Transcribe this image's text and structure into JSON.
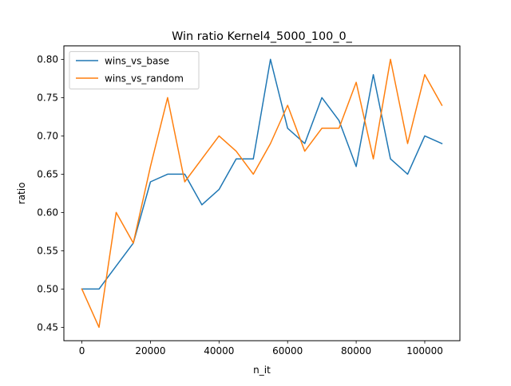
{
  "chart_data": {
    "type": "line",
    "title": "Win ratio Kernel4_5000_100_0_",
    "xlabel": "n_it",
    "ylabel": "ratio",
    "xlim": [
      -5250,
      110250
    ],
    "ylim": [
      0.4325,
      0.8175
    ],
    "xticks": [
      0,
      20000,
      40000,
      60000,
      80000,
      100000
    ],
    "xtick_labels": [
      "0",
      "20000",
      "40000",
      "60000",
      "80000",
      "100000"
    ],
    "yticks": [
      0.45,
      0.5,
      0.55,
      0.6,
      0.65,
      0.7,
      0.75,
      0.8
    ],
    "ytick_labels": [
      "0.45",
      "0.50",
      "0.55",
      "0.60",
      "0.65",
      "0.70",
      "0.75",
      "0.80"
    ],
    "grid": false,
    "legend_position": "top-left",
    "x": [
      0,
      5000,
      10000,
      15000,
      20000,
      25000,
      30000,
      35000,
      40000,
      45000,
      50000,
      55000,
      60000,
      65000,
      70000,
      75000,
      80000,
      85000,
      90000,
      95000,
      100000,
      105000
    ],
    "series": [
      {
        "name": "wins_vs_base",
        "color": "#1f77b4",
        "values": [
          0.5,
          0.5,
          0.53,
          0.56,
          0.64,
          0.65,
          0.65,
          0.61,
          0.63,
          0.67,
          0.67,
          0.8,
          0.71,
          0.69,
          0.75,
          0.72,
          0.66,
          0.78,
          0.67,
          0.65,
          0.7,
          0.69
        ]
      },
      {
        "name": "wins_vs_random",
        "color": "#ff7f0e",
        "values": [
          0.5,
          0.45,
          0.6,
          0.56,
          0.66,
          0.75,
          0.64,
          0.67,
          0.7,
          0.68,
          0.65,
          0.69,
          0.74,
          0.68,
          0.71,
          0.71,
          0.77,
          0.67,
          0.8,
          0.69,
          0.78,
          0.74
        ]
      }
    ]
  }
}
